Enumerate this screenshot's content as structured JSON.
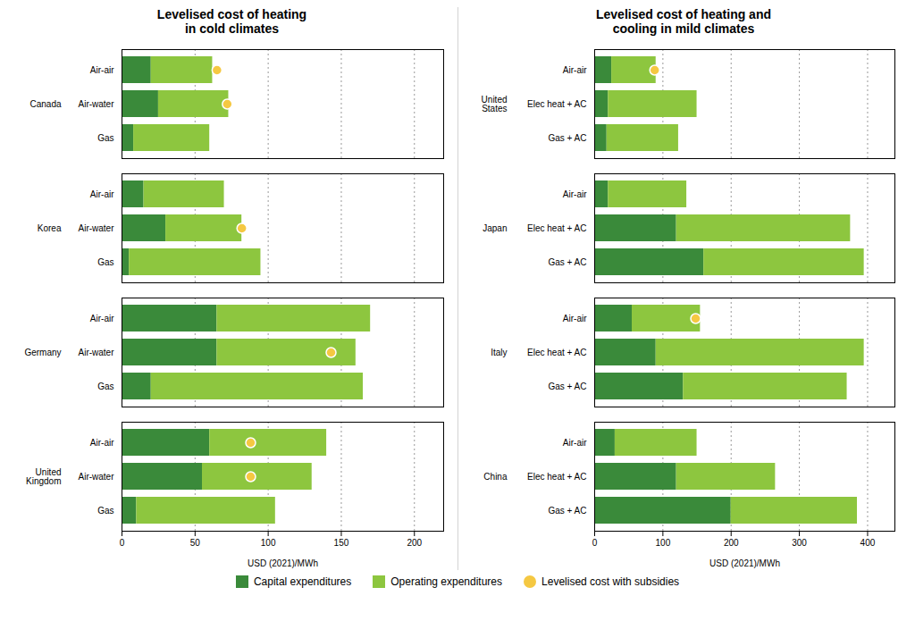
{
  "chart_data": [
    {
      "type": "bar",
      "orientation": "horizontal",
      "stacked": true,
      "grid": true,
      "title": "Levelised cost of heating\nin cold climates",
      "x_label": "USD (2021)/MWh",
      "categories": [
        "Air-air",
        "Air-water",
        "Gas",
        "Air-air",
        "Air-water",
        "Gas",
        "Air-air",
        "Air-water",
        "Gas",
        "Air-air",
        "Air-water",
        "Gas"
      ],
      "category_groups": [
        "Canada",
        "Canada",
        "Canada",
        "Korea",
        "Korea",
        "Korea",
        "Germany",
        "Germany",
        "Germany",
        "United\nKingdom",
        "United\nKingdom",
        "United\nKingdom"
      ],
      "series": [
        {
          "name": "Capital expenditures",
          "color": "#3a8a3a",
          "type": "bar",
          "values": [
            20,
            25,
            8,
            15,
            30,
            5,
            65,
            65,
            20,
            60,
            55,
            10
          ]
        },
        {
          "name": "Operating expenditures",
          "color": "#8dc63f",
          "type": "bar",
          "values": [
            42,
            48,
            52,
            55,
            52,
            90,
            105,
            95,
            145,
            80,
            75,
            95
          ]
        },
        {
          "name": "Levelised cost with subsidies",
          "color": "#f5c842",
          "type": "scatter",
          "marker": "circle",
          "values": [
            65,
            72,
            null,
            null,
            82,
            null,
            null,
            143,
            null,
            88,
            88,
            null
          ]
        }
      ],
      "xlim": [
        0,
        220
      ],
      "xticks": [
        0,
        50,
        100,
        150,
        200
      ]
    },
    {
      "type": "bar",
      "orientation": "horizontal",
      "stacked": true,
      "grid": true,
      "title": "Levelised cost of heating and\ncooling in mild climates",
      "x_label": "USD (2021)/MWh",
      "categories": [
        "Air-air",
        "Elec heat + AC",
        "Gas + AC",
        "Air-air",
        "Elec heat + AC",
        "Gas + AC",
        "Air-air",
        "Elec heat + AC",
        "Gas + AC",
        "Air-air",
        "Elec heat + AC",
        "Gas + AC"
      ],
      "category_groups": [
        "United\nStates",
        "United\nStates",
        "United\nStates",
        "Japan",
        "Japan",
        "Japan",
        "Italy",
        "Italy",
        "Italy",
        "China",
        "China",
        "China"
      ],
      "series": [
        {
          "name": "Capital expenditures",
          "color": "#3a8a3a",
          "type": "bar",
          "values": [
            25,
            20,
            18,
            20,
            120,
            160,
            55,
            90,
            130,
            30,
            120,
            200
          ]
        },
        {
          "name": "Operating expenditures",
          "color": "#8dc63f",
          "type": "bar",
          "values": [
            65,
            130,
            105,
            115,
            255,
            235,
            100,
            305,
            240,
            120,
            145,
            185
          ]
        },
        {
          "name": "Levelised cost with subsidies",
          "color": "#f5c842",
          "type": "scatter",
          "marker": "circle",
          "values": [
            88,
            null,
            null,
            null,
            null,
            null,
            148,
            null,
            null,
            null,
            null,
            null
          ]
        }
      ],
      "xlim": [
        0,
        440
      ],
      "xticks": [
        0,
        100,
        200,
        300,
        400
      ]
    }
  ]
}
